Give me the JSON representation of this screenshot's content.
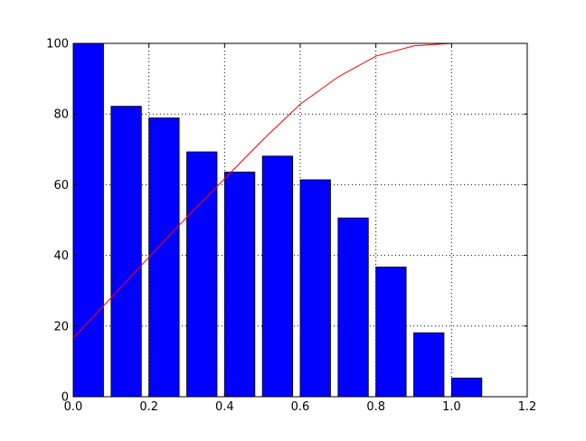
{
  "chart_data": {
    "type": "bar",
    "title": "",
    "xlabel": "",
    "ylabel": "",
    "xlim": [
      0,
      1.2
    ],
    "ylim": [
      0,
      100
    ],
    "grid": true,
    "grid_style": "dotted",
    "legend": "none",
    "x_ticks": [
      "0.0",
      "0.2",
      "0.4",
      "0.6",
      "0.8",
      "1.0",
      "1.2"
    ],
    "y_ticks": [
      "0",
      "20",
      "40",
      "60",
      "80",
      "100"
    ],
    "bar_width": 0.08,
    "bar_color": "#0000ff",
    "line_color": "#ff0000",
    "bars": {
      "x": [
        0.0,
        0.1,
        0.2,
        0.3,
        0.4,
        0.5,
        0.6,
        0.7,
        0.8,
        0.9,
        1.0
      ],
      "values": [
        100,
        82.2,
        78.9,
        69.3,
        63.6,
        68.1,
        61.4,
        50.6,
        36.7,
        18.1,
        5.3
      ]
    },
    "line": {
      "x": [
        0.0,
        0.1,
        0.2,
        0.3,
        0.4,
        0.5,
        0.6,
        0.7,
        0.8,
        0.9,
        1.0
      ],
      "values": [
        16.6,
        28.0,
        39.5,
        50.8,
        61.7,
        72.6,
        82.8,
        90.5,
        96.4,
        99.3,
        100
      ]
    }
  }
}
